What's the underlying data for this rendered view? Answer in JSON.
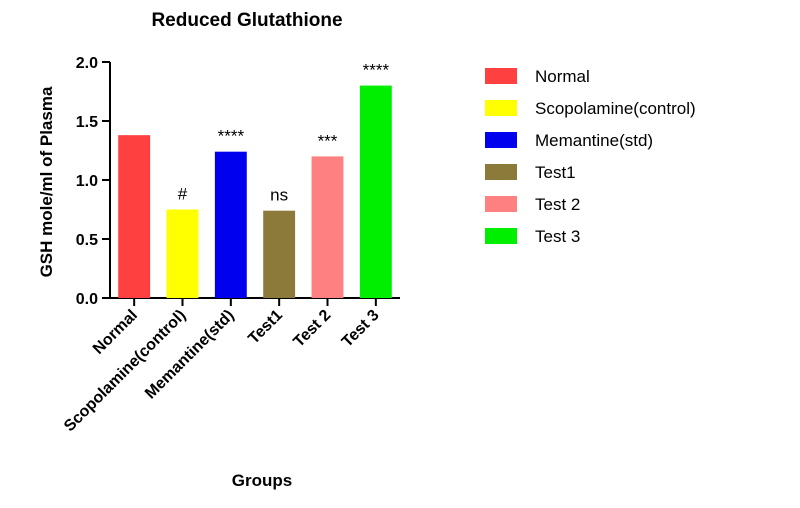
{
  "chart_data": {
    "type": "bar",
    "title": "Reduced Glutathione",
    "xlabel": "Groups",
    "ylabel": "GSH   mole/ml of Plasma",
    "ylim": [
      0,
      2.0
    ],
    "yticks": [
      "0.0",
      "0.5",
      "1.0",
      "1.5",
      "2.0"
    ],
    "categories": [
      "Normal",
      "Scopolamine(control)",
      "Memantine(std)",
      "Test1",
      "Test 2",
      "Test 3"
    ],
    "values": [
      1.38,
      0.75,
      1.24,
      0.74,
      1.2,
      1.8
    ],
    "colors": [
      "#ff4040",
      "#ffff00",
      "#0000ee",
      "#8b7a3a",
      "#ff8080",
      "#00ee00"
    ],
    "annotations": [
      "",
      "#",
      "****",
      "ns",
      "***",
      "****"
    ],
    "legend_position": "right",
    "grid": false
  }
}
